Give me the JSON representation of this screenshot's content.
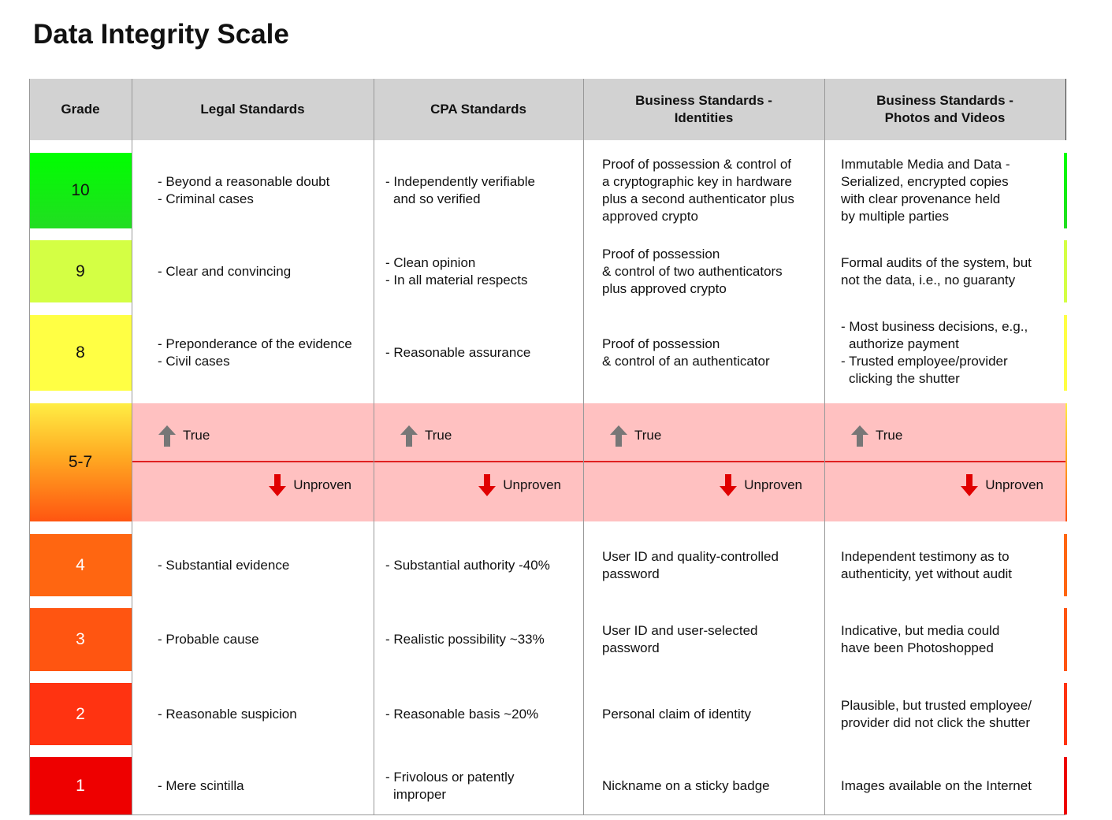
{
  "title": "Data Integrity Scale",
  "table": {
    "header": [
      [
        "Grade"
      ],
      [
        "Legal Standards"
      ],
      [
        "CPA Standards"
      ],
      [
        "Business Standards -",
        "Identities"
      ],
      [
        "Business Standards -",
        "Photos and Videos"
      ]
    ],
    "rows": [
      {
        "grade": "10",
        "cells": [
          [
            "- Beyond a reasonable doubt",
            "- Criminal cases"
          ],
          [
            "- Independently verifiable",
            "and so verified"
          ],
          [
            "Proof of possession & control of",
            "a cryptographic key in hardware",
            "plus a second authenticator plus",
            "approved crypto"
          ],
          [
            "Immutable Media and Data -",
            "Serialized, encrypted copies",
            "with clear provenance held",
            "by multiple parties"
          ]
        ]
      },
      {
        "grade": "9",
        "cells": [
          [
            "- Clear and convincing"
          ],
          [
            "- Clean opinion",
            "- In all material respects"
          ],
          [
            "Proof of possession",
            "& control of two authenticators",
            "plus approved crypto"
          ],
          [
            "Formal audits of the system, but",
            "not the data, i.e., no guaranty"
          ]
        ]
      },
      {
        "grade": "8",
        "cells": [
          [
            "- Preponderance of the evidence",
            "- Civil cases"
          ],
          [
            "- Reasonable assurance"
          ],
          [
            "Proof of possession",
            "& control of an authenticator"
          ],
          [
            "- Most business decisions, e.g.,",
            "authorize payment",
            "- Trusted employee/provider",
            "clicking the shutter"
          ]
        ]
      },
      {
        "grade": "5-7",
        "cells": [
          {
            "up": "True",
            "down": "Unproven"
          },
          {
            "up": "True",
            "down": "Unproven"
          },
          {
            "up": "True",
            "down": "Unproven"
          },
          {
            "up": "True",
            "down": "Unproven"
          }
        ]
      },
      {
        "grade": "4",
        "cells": [
          [
            "- Substantial evidence"
          ],
          [
            "- Substantial authority -40%"
          ],
          [
            "User ID and quality-controlled",
            "password"
          ],
          [
            "Independent testimony as to",
            "authenticity, yet without audit"
          ]
        ]
      },
      {
        "grade": "3",
        "cells": [
          [
            "- Probable cause"
          ],
          [
            "- Realistic possibility ~33%"
          ],
          [
            "User ID and user-selected",
            "password"
          ],
          [
            "Indicative, but media could",
            "have been Photoshopped"
          ]
        ]
      },
      {
        "grade": "2",
        "cells": [
          [
            "- Reasonable suspicion"
          ],
          [
            "- Reasonable basis ~20%"
          ],
          [
            "Personal claim of identity"
          ],
          [
            "Plausible, but trusted employee/",
            "provider did not click the shutter"
          ]
        ]
      },
      {
        "grade": "1",
        "cells": [
          [
            "- Mere scintilla"
          ],
          [
            "- Frivolous or patently",
            "improper"
          ],
          [
            "Nickname on a sticky badge"
          ],
          [
            "Images available on the Internet"
          ]
        ]
      }
    ]
  }
}
